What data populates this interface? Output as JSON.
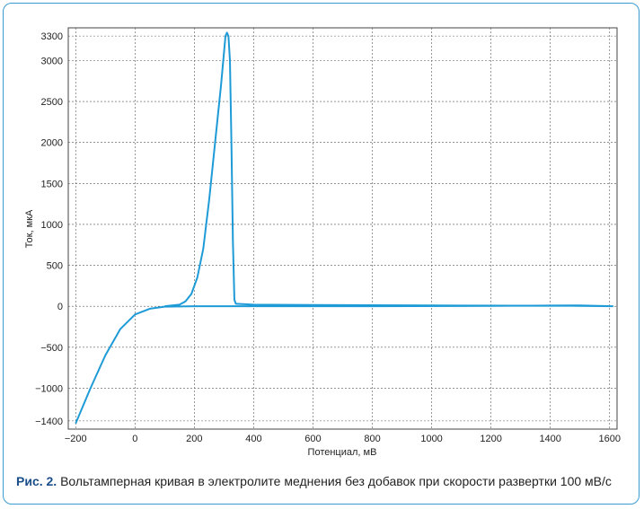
{
  "chart_data": {
    "type": "line",
    "x_label": "Потенциал, мВ",
    "y_label": "Ток, мкА",
    "caption_prefix": "Рис. 2.",
    "caption": "Вольтамперная кривая в электролите меднения без добавок при скорости развертки 100 мВ/с",
    "xlim": [
      -225,
      1625
    ],
    "ylim": [
      -1500,
      3400
    ],
    "grid": true,
    "xticks": [
      {
        "value": -200,
        "label": "−200"
      },
      0,
      200,
      400,
      600,
      800,
      1000,
      1200,
      1400,
      1600
    ],
    "yticks": [
      {
        "value": -1400,
        "label": "−1400"
      },
      {
        "value": -1000,
        "label": "−1000"
      },
      {
        "value": -500,
        "label": "−500"
      },
      0,
      500,
      1000,
      1500,
      2000,
      2500,
      3000,
      3300
    ],
    "series": [
      {
        "color": "#1e9bd7",
        "x": [
          -200,
          -150,
          -100,
          -50,
          0,
          50,
          100,
          200,
          400,
          800,
          1200,
          1500,
          1610,
          1500,
          1000,
          600,
          400,
          340,
          335,
          330,
          325,
          320,
          315,
          310,
          305,
          290,
          270,
          250,
          230,
          210,
          190,
          170,
          150,
          100
        ],
        "values": [
          -1430,
          -1000,
          -600,
          -280,
          -100,
          -30,
          -5,
          0,
          0,
          0,
          5,
          10,
          0,
          5,
          10,
          15,
          20,
          30,
          80,
          800,
          2000,
          3000,
          3300,
          3340,
          3300,
          2700,
          2000,
          1300,
          700,
          350,
          150,
          60,
          20,
          0
        ]
      }
    ]
  }
}
